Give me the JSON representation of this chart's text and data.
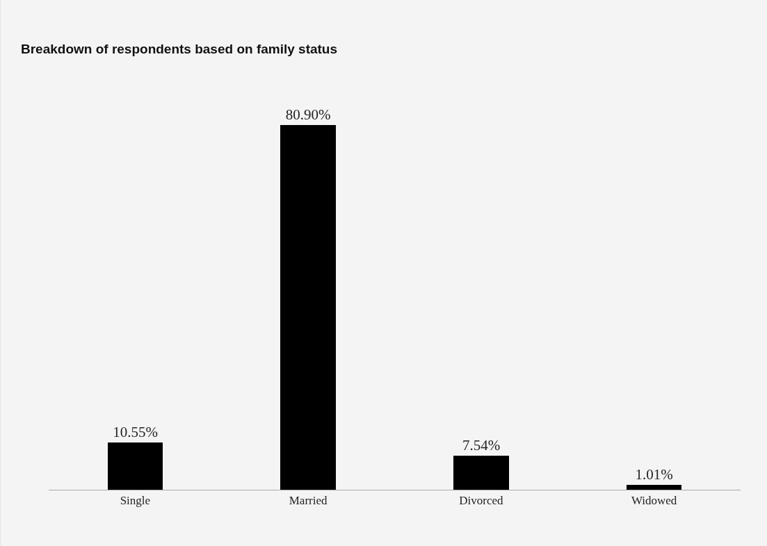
{
  "chart_data": {
    "type": "bar",
    "title": "Breakdown of respondents based on family status",
    "categories": [
      "Single",
      "Married",
      "Divorced",
      "Widowed"
    ],
    "values": [
      10.55,
      80.9,
      7.54,
      1.01
    ],
    "value_labels": [
      "10.55%",
      "80.90%",
      "7.54%",
      "1.01%"
    ],
    "color": "#000000",
    "grid": false,
    "legend": false
  }
}
